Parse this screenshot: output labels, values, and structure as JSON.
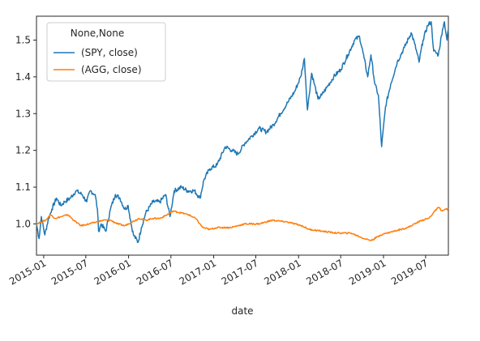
{
  "chart_data": {
    "type": "line",
    "title": "",
    "xlabel": "date",
    "ylabel": "",
    "x_range": [
      "2014-12-01",
      "2019-10-07"
    ],
    "ylim": [
      0.915,
      1.565
    ],
    "grid": false,
    "legend": {
      "title": "None,None",
      "placement": "top-left"
    },
    "x_ticks": [
      {
        "date": "2015-01-01",
        "label": "2015-01"
      },
      {
        "date": "2015-07-01",
        "label": "2015-07"
      },
      {
        "date": "2016-01-01",
        "label": "2016-01"
      },
      {
        "date": "2016-07-01",
        "label": "2016-07"
      },
      {
        "date": "2017-01-01",
        "label": "2017-01"
      },
      {
        "date": "2017-07-01",
        "label": "2017-07"
      },
      {
        "date": "2018-01-01",
        "label": "2018-01"
      },
      {
        "date": "2018-07-01",
        "label": "2018-07"
      },
      {
        "date": "2019-01-01",
        "label": "2019-01"
      },
      {
        "date": "2019-07-01",
        "label": "2019-07"
      }
    ],
    "y_ticks": [
      {
        "value": 1.0,
        "label": "1.0"
      },
      {
        "value": 1.1,
        "label": "1.1"
      },
      {
        "value": 1.2,
        "label": "1.2"
      },
      {
        "value": 1.3,
        "label": "1.3"
      },
      {
        "value": 1.4,
        "label": "1.4"
      },
      {
        "value": 1.5,
        "label": "1.5"
      }
    ],
    "series": [
      {
        "name": "(SPY, close)",
        "color": "#1f77b4",
        "points": [
          [
            "2014-12-01",
            1.0
          ],
          [
            "2014-12-12",
            0.96
          ],
          [
            "2014-12-22",
            1.02
          ],
          [
            "2015-01-06",
            0.97
          ],
          [
            "2015-01-20",
            1.01
          ],
          [
            "2015-02-05",
            1.04
          ],
          [
            "2015-02-25",
            1.07
          ],
          [
            "2015-03-15",
            1.05
          ],
          [
            "2015-04-01",
            1.06
          ],
          [
            "2015-04-25",
            1.07
          ],
          [
            "2015-05-20",
            1.09
          ],
          [
            "2015-06-15",
            1.08
          ],
          [
            "2015-07-05",
            1.06
          ],
          [
            "2015-07-20",
            1.09
          ],
          [
            "2015-08-10",
            1.08
          ],
          [
            "2015-08-20",
            1.04
          ],
          [
            "2015-08-25",
            0.98
          ],
          [
            "2015-09-05",
            1.0
          ],
          [
            "2015-09-25",
            0.98
          ],
          [
            "2015-10-15",
            1.04
          ],
          [
            "2015-11-05",
            1.08
          ],
          [
            "2015-11-25",
            1.07
          ],
          [
            "2015-12-15",
            1.04
          ],
          [
            "2015-12-30",
            1.05
          ],
          [
            "2016-01-12",
            1.0
          ],
          [
            "2016-01-22",
            0.97
          ],
          [
            "2016-02-11",
            0.95
          ],
          [
            "2016-02-25",
            0.99
          ],
          [
            "2016-03-15",
            1.03
          ],
          [
            "2016-04-15",
            1.06
          ],
          [
            "2016-05-15",
            1.06
          ],
          [
            "2016-06-08",
            1.08
          ],
          [
            "2016-06-27",
            1.02
          ],
          [
            "2016-07-15",
            1.09
          ],
          [
            "2016-08-15",
            1.1
          ],
          [
            "2016-09-10",
            1.09
          ],
          [
            "2016-10-10",
            1.09
          ],
          [
            "2016-11-03",
            1.07
          ],
          [
            "2016-11-20",
            1.12
          ],
          [
            "2016-12-15",
            1.15
          ],
          [
            "2017-01-15",
            1.16
          ],
          [
            "2017-02-20",
            1.21
          ],
          [
            "2017-03-20",
            1.2
          ],
          [
            "2017-04-15",
            1.19
          ],
          [
            "2017-05-15",
            1.22
          ],
          [
            "2017-06-15",
            1.24
          ],
          [
            "2017-07-15",
            1.26
          ],
          [
            "2017-08-15",
            1.25
          ],
          [
            "2017-09-15",
            1.27
          ],
          [
            "2017-10-15",
            1.3
          ],
          [
            "2017-11-15",
            1.33
          ],
          [
            "2017-12-15",
            1.36
          ],
          [
            "2018-01-10",
            1.4
          ],
          [
            "2018-01-26",
            1.45
          ],
          [
            "2018-02-08",
            1.31
          ],
          [
            "2018-02-26",
            1.41
          ],
          [
            "2018-03-10",
            1.38
          ],
          [
            "2018-03-25",
            1.34
          ],
          [
            "2018-04-10",
            1.35
          ],
          [
            "2018-05-01",
            1.37
          ],
          [
            "2018-06-01",
            1.4
          ],
          [
            "2018-07-01",
            1.42
          ],
          [
            "2018-08-01",
            1.46
          ],
          [
            "2018-08-30",
            1.5
          ],
          [
            "2018-09-20",
            1.51
          ],
          [
            "2018-10-10",
            1.45
          ],
          [
            "2018-10-25",
            1.4
          ],
          [
            "2018-11-08",
            1.46
          ],
          [
            "2018-11-25",
            1.38
          ],
          [
            "2018-12-10",
            1.35
          ],
          [
            "2018-12-24",
            1.21
          ],
          [
            "2019-01-10",
            1.32
          ],
          [
            "2019-02-01",
            1.38
          ],
          [
            "2019-03-01",
            1.44
          ],
          [
            "2019-04-01",
            1.48
          ],
          [
            "2019-04-30",
            1.52
          ],
          [
            "2019-05-15",
            1.49
          ],
          [
            "2019-06-03",
            1.44
          ],
          [
            "2019-06-20",
            1.5
          ],
          [
            "2019-07-10",
            1.54
          ],
          [
            "2019-07-25",
            1.55
          ],
          [
            "2019-08-05",
            1.47
          ],
          [
            "2019-08-25",
            1.46
          ],
          [
            "2019-09-12",
            1.53
          ],
          [
            "2019-09-20",
            1.55
          ],
          [
            "2019-10-01",
            1.5
          ],
          [
            "2019-10-07",
            1.53
          ]
        ]
      },
      {
        "name": "(AGG, close)",
        "color": "#ff7f0e",
        "points": [
          [
            "2014-12-01",
            1.0
          ],
          [
            "2014-12-20",
            1.005
          ],
          [
            "2015-01-10",
            1.01
          ],
          [
            "2015-01-30",
            1.025
          ],
          [
            "2015-02-20",
            1.015
          ],
          [
            "2015-03-20",
            1.02
          ],
          [
            "2015-04-15",
            1.025
          ],
          [
            "2015-05-10",
            1.01
          ],
          [
            "2015-06-10",
            0.995
          ],
          [
            "2015-07-15",
            1.0
          ],
          [
            "2015-08-15",
            1.005
          ],
          [
            "2015-09-15",
            1.01
          ],
          [
            "2015-10-15",
            1.01
          ],
          [
            "2015-11-15",
            1.0
          ],
          [
            "2015-12-15",
            0.995
          ],
          [
            "2016-01-15",
            1.005
          ],
          [
            "2016-02-15",
            1.015
          ],
          [
            "2016-03-15",
            1.01
          ],
          [
            "2016-04-15",
            1.015
          ],
          [
            "2016-05-15",
            1.015
          ],
          [
            "2016-06-15",
            1.025
          ],
          [
            "2016-07-10",
            1.035
          ],
          [
            "2016-08-15",
            1.03
          ],
          [
            "2016-09-15",
            1.025
          ],
          [
            "2016-10-15",
            1.015
          ],
          [
            "2016-11-15",
            0.99
          ],
          [
            "2016-12-15",
            0.985
          ],
          [
            "2017-01-15",
            0.99
          ],
          [
            "2017-03-15",
            0.99
          ],
          [
            "2017-05-15",
            1.0
          ],
          [
            "2017-07-15",
            1.0
          ],
          [
            "2017-09-10",
            1.01
          ],
          [
            "2017-11-15",
            1.005
          ],
          [
            "2018-01-15",
            0.995
          ],
          [
            "2018-02-15",
            0.985
          ],
          [
            "2018-04-15",
            0.98
          ],
          [
            "2018-06-15",
            0.975
          ],
          [
            "2018-08-15",
            0.975
          ],
          [
            "2018-10-10",
            0.96
          ],
          [
            "2018-11-10",
            0.955
          ],
          [
            "2018-12-20",
            0.97
          ],
          [
            "2019-01-15",
            0.975
          ],
          [
            "2019-02-15",
            0.98
          ],
          [
            "2019-03-15",
            0.985
          ],
          [
            "2019-04-15",
            0.99
          ],
          [
            "2019-05-15",
            1.0
          ],
          [
            "2019-06-15",
            1.01
          ],
          [
            "2019-07-15",
            1.015
          ],
          [
            "2019-08-10",
            1.035
          ],
          [
            "2019-08-25",
            1.045
          ],
          [
            "2019-09-10",
            1.035
          ],
          [
            "2019-09-25",
            1.04
          ],
          [
            "2019-10-07",
            1.04
          ]
        ]
      }
    ]
  }
}
